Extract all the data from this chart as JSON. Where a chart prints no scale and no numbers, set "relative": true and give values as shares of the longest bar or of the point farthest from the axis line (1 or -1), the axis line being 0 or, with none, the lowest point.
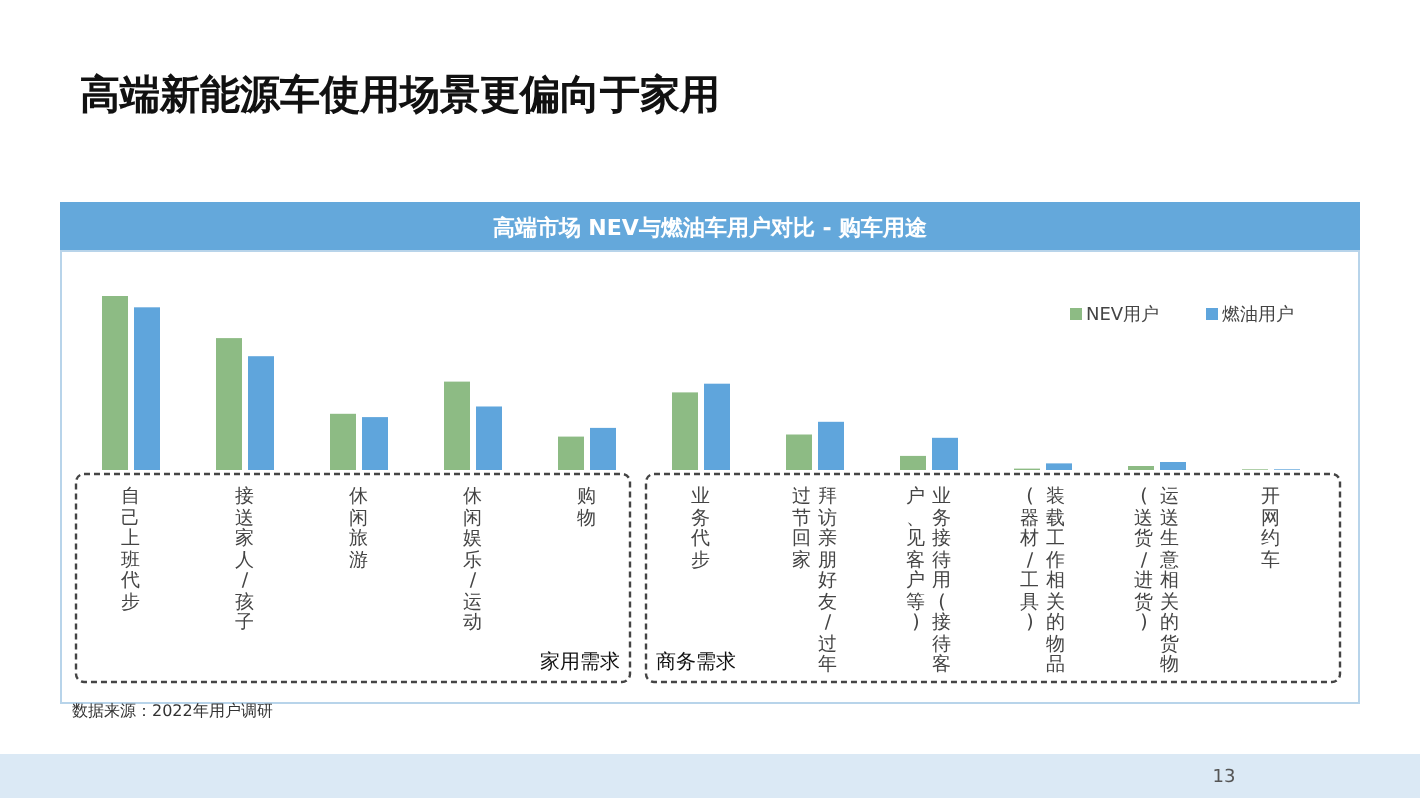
{
  "chart_data": {
    "type": "bar",
    "title": "高端新能源车使用场景更偏向于家用",
    "subtitle": "高端市场 NEV与燃油车用户对比 - 购车用途",
    "categories": [
      "自己上班代步",
      "接送家人/孩子",
      "休闲旅游",
      "休闲娱乐/运动",
      "购物",
      "业务代步",
      "拜访亲朋好友/过年过节回家",
      "业务接待用(接待客户、见客户等)",
      "装载工作相关的物品(器材/工具)",
      "运送生意相关的货物(送货/进货)",
      "开网约车"
    ],
    "relative": true,
    "legend": "top right",
    "grid": false,
    "series": [
      {
        "name": "NEV用户",
        "color": "#8dbb84",
        "values": [
          1.0,
          0.758,
          0.323,
          0.508,
          0.192,
          0.446,
          0.204,
          0.081,
          0.008,
          0.023,
          0.004
        ]
      },
      {
        "name": "燃油用户",
        "color": "#5fa5dc",
        "values": [
          0.935,
          0.654,
          0.304,
          0.365,
          0.242,
          0.496,
          0.277,
          0.185,
          0.038,
          0.046,
          0.004
        ]
      }
    ],
    "annotations": [
      "家用需求",
      "商务需求",
      "数据来源：2022年用户调研",
      "13"
    ]
  }
}
